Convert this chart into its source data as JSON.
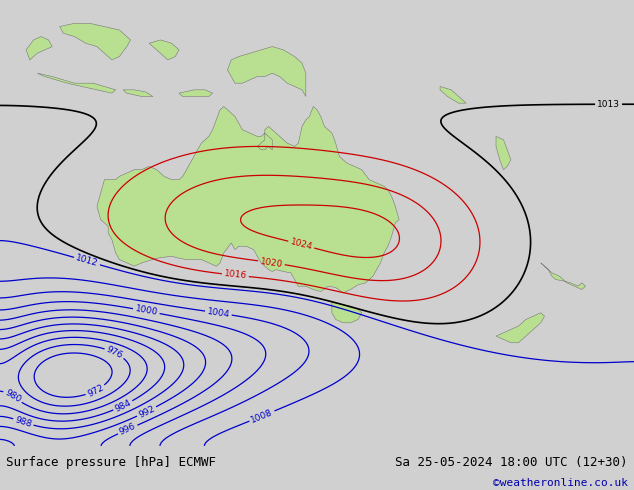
{
  "title_left": "Surface pressure [hPa] ECMWF",
  "title_right": "Sa 25-05-2024 18:00 UTC (12+30)",
  "credit": "©weatheronline.co.uk",
  "bg_map_color": "#b0c4d8",
  "land_color": "#b8e090",
  "footer_bg": "#d0d0d0",
  "contour_blue_color": "#0000cc",
  "contour_red_color": "#cc0000",
  "contour_black_color": "#000000",
  "footer_fontsize": 9,
  "credit_fontsize": 8,
  "credit_color": "#0000aa",
  "lon_min": 100,
  "lon_max": 185,
  "lat_min": -62,
  "lat_max": 5
}
